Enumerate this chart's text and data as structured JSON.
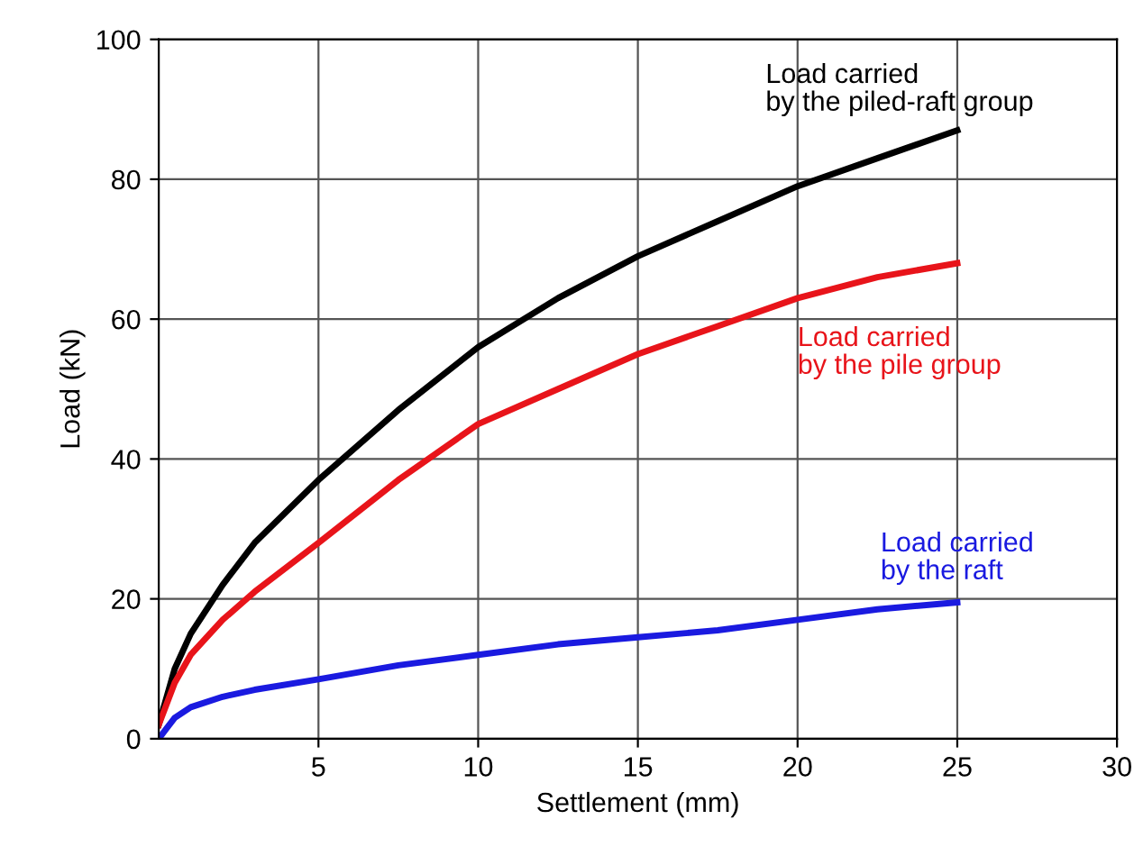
{
  "chart_data": {
    "type": "line",
    "xlabel": "Settlement (mm)",
    "ylabel": "Load (kN)",
    "xlim": [
      0,
      30
    ],
    "xticks": [
      5,
      10,
      15,
      20,
      25,
      30
    ],
    "ylim": [
      0,
      100
    ],
    "yticks": [
      0,
      20,
      40,
      60,
      80,
      100
    ],
    "grid": true,
    "legend": false,
    "marker": "none",
    "line_style": "solid",
    "x": [
      0,
      0.25,
      0.5,
      1,
      2,
      3,
      5,
      7.5,
      10,
      12.5,
      15,
      17.5,
      20,
      22.5,
      25
    ],
    "series": [
      {
        "name": "Load carried\nby the piled-raft group",
        "color": "#000000",
        "values": [
          2,
          6,
          10,
          15,
          22,
          28,
          37,
          47,
          56,
          63,
          69,
          74,
          79,
          83,
          87
        ]
      },
      {
        "name": "Load carried\nby the pile group",
        "color": "#e8141a",
        "values": [
          2,
          5,
          8,
          12,
          17,
          21,
          28,
          37,
          45,
          50,
          55,
          59,
          63,
          66,
          68
        ]
      },
      {
        "name": "Load carried\nby the raft",
        "color": "#1a1ae0",
        "values": [
          0,
          1.5,
          3,
          4.5,
          6,
          7,
          8.5,
          10.5,
          12,
          13.5,
          14.5,
          15.5,
          17,
          18.5,
          19.5
        ]
      }
    ]
  }
}
